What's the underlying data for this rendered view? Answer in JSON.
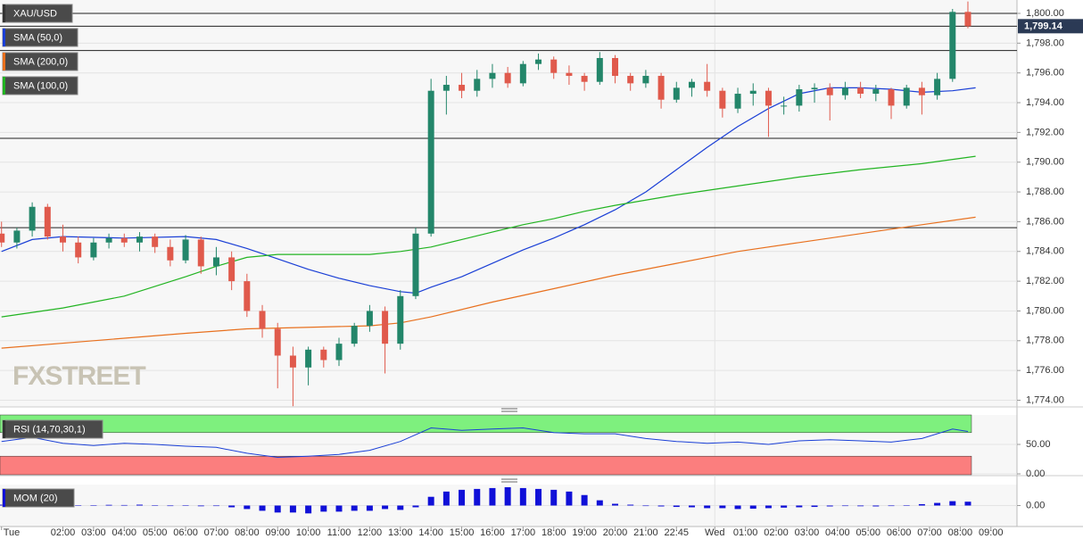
{
  "chart_data": [
    {
      "type": "candlestick",
      "pane": "main",
      "symbol": "XAU/USD",
      "indicators": [
        {
          "name": "SMA (50,0)",
          "color": "#1a3fd6",
          "x": [
            0,
            1,
            2,
            4,
            6,
            7,
            8,
            9,
            10,
            11,
            12,
            13,
            13.5,
            14,
            15,
            16,
            17,
            18,
            19,
            20,
            21,
            22,
            23,
            24,
            25,
            26,
            27,
            28,
            29,
            30,
            31,
            31.75
          ],
          "values": [
            1784,
            1784.8,
            1785,
            1784.9,
            1785,
            1784.8,
            1784.2,
            1783.5,
            1782.8,
            1782.2,
            1781.7,
            1781.3,
            1781.2,
            1781.6,
            1782.3,
            1783.2,
            1784.1,
            1784.9,
            1785.8,
            1786.8,
            1788,
            1789.5,
            1791,
            1792.4,
            1793.6,
            1794.6,
            1795,
            1795,
            1794.9,
            1794.7,
            1794.8,
            1795
          ]
        },
        {
          "name": "SMA (200,0)",
          "color": "#e8701e",
          "x": [
            0,
            3,
            6,
            8,
            12,
            13,
            14,
            16,
            18,
            20,
            22,
            24,
            26,
            28,
            30,
            31.75
          ],
          "values": [
            1777.5,
            1778,
            1778.5,
            1778.8,
            1779,
            1779.2,
            1779.6,
            1780.6,
            1781.5,
            1782.4,
            1783.2,
            1784,
            1784.6,
            1785.2,
            1785.8,
            1786.3
          ]
        },
        {
          "name": "SMA (100,0)",
          "color": "#22b422",
          "x": [
            0,
            2,
            4,
            6,
            7,
            8,
            9,
            10,
            11,
            12,
            13,
            14,
            15,
            16,
            17,
            18,
            19,
            20,
            22,
            23,
            24,
            26,
            28,
            30,
            31.75
          ],
          "values": [
            1779.6,
            1780.2,
            1781,
            1782.3,
            1783,
            1783.6,
            1783.8,
            1783.8,
            1783.8,
            1783.8,
            1784,
            1784.3,
            1784.8,
            1785.3,
            1785.8,
            1786.2,
            1786.7,
            1787.1,
            1787.8,
            1788.1,
            1788.4,
            1789,
            1789.5,
            1789.9,
            1790.4
          ]
        }
      ],
      "up_color": "#23866a",
      "down_color": "#e05a4c",
      "x": [
        0,
        0.5,
        1,
        1.5,
        2,
        2.5,
        3,
        3.5,
        4,
        4.5,
        5,
        5.5,
        6,
        6.5,
        7,
        7.5,
        8,
        8.5,
        9,
        9.5,
        10,
        10.5,
        11,
        11.5,
        12,
        12.5,
        13,
        13.5,
        14,
        14.5,
        15,
        15.5,
        16,
        16.5,
        17,
        17.5,
        18,
        18.5,
        19,
        19.5,
        20,
        20.5,
        21,
        21.5,
        22,
        22.5,
        23,
        23.5,
        24,
        24.5,
        25,
        25.5,
        26,
        26.5,
        27,
        27.5,
        28,
        28.5,
        29,
        29.5,
        30,
        30.5,
        31,
        31.5
      ],
      "open": [
        1785.2,
        1784.6,
        1785.4,
        1787,
        1785,
        1784.6,
        1783.6,
        1784.6,
        1784.9,
        1784.6,
        1785,
        1784.3,
        1783.4,
        1784.8,
        1783,
        1783.6,
        1782,
        1780,
        1778.8,
        1777,
        1776.2,
        1777.4,
        1776.7,
        1777.8,
        1779,
        1780,
        1777.8,
        1781,
        1785.2,
        1794.8,
        1795.2,
        1794.8,
        1795.6,
        1796,
        1795.3,
        1796.6,
        1796.9,
        1796,
        1795.8,
        1795.4,
        1797,
        1795.8,
        1795.3,
        1795.8,
        1794.2,
        1795,
        1795.4,
        1794.8,
        1793.6,
        1794.6,
        1794.8,
        1793.8,
        1793.8,
        1794.9,
        1795,
        1794.5,
        1795,
        1794.6,
        1794.9,
        1793.8,
        1795,
        1794.5,
        1795.6,
        1800.1
      ],
      "high": [
        1786,
        1785.6,
        1787.3,
        1787.2,
        1785.8,
        1785,
        1784.9,
        1785.2,
        1785.2,
        1785.3,
        1785.2,
        1784.8,
        1785.1,
        1785,
        1784.3,
        1784,
        1782.5,
        1780.4,
        1779.2,
        1777.6,
        1777.6,
        1777.6,
        1778.2,
        1779.2,
        1780.4,
        1780.3,
        1781.4,
        1785.6,
        1795.6,
        1795.8,
        1796,
        1796.2,
        1796.6,
        1796.4,
        1796.8,
        1797.3,
        1797.1,
        1796.5,
        1796,
        1797.4,
        1797.2,
        1796,
        1796.2,
        1796,
        1795.4,
        1795.6,
        1796.6,
        1795,
        1795,
        1795.3,
        1795,
        1794.4,
        1795.2,
        1795.3,
        1795.3,
        1795.4,
        1795.4,
        1795.2,
        1795,
        1795.2,
        1795.4,
        1796,
        1800.3,
        1800.8
      ],
      "low": [
        1784.3,
        1784.2,
        1785,
        1784.8,
        1784,
        1783.2,
        1783.4,
        1784.2,
        1784.3,
        1784,
        1783.9,
        1783,
        1783.2,
        1782.5,
        1782.4,
        1781.4,
        1779.6,
        1778.2,
        1774.8,
        1773.6,
        1775,
        1776.2,
        1776.3,
        1777.6,
        1778.6,
        1775.8,
        1777.4,
        1780.8,
        1785,
        1793.2,
        1794.3,
        1794.4,
        1795,
        1795,
        1795.1,
        1796.2,
        1795.6,
        1795.2,
        1794.8,
        1795.2,
        1795.3,
        1794.8,
        1795,
        1793.6,
        1794,
        1794.4,
        1794.4,
        1793,
        1793.3,
        1793.8,
        1791.7,
        1793.2,
        1793.4,
        1794,
        1792.8,
        1794.2,
        1794.3,
        1794.1,
        1792.9,
        1793.6,
        1793.2,
        1794.2,
        1795.4,
        1799
      ],
      "close": [
        1784.6,
        1785.4,
        1787,
        1785,
        1784.6,
        1783.6,
        1784.6,
        1784.9,
        1784.6,
        1785,
        1784.3,
        1783.4,
        1784.8,
        1783,
        1783.6,
        1782,
        1780,
        1778.8,
        1777,
        1776.2,
        1777.4,
        1776.7,
        1777.8,
        1779,
        1780,
        1777.8,
        1781,
        1785.2,
        1794.8,
        1795.2,
        1794.8,
        1795.6,
        1796,
        1795.3,
        1796.6,
        1796.9,
        1796,
        1795.8,
        1795.4,
        1797,
        1795.8,
        1795.3,
        1795.8,
        1794.2,
        1795,
        1795.4,
        1794.8,
        1793.6,
        1794.6,
        1794.8,
        1793.8,
        1793.8,
        1794.9,
        1795,
        1794.5,
        1795,
        1794.6,
        1794.9,
        1793.8,
        1795,
        1794.5,
        1795.6,
        1800.1,
        1799.14
      ],
      "levels": [
        1800,
        1799.14,
        1797.5,
        1791.6,
        1785.6
      ],
      "last_price": {
        "value": 1799.14,
        "label": "1,799.14"
      },
      "watermark": "FXSTREET",
      "xlim": [
        -0.05,
        33.1
      ],
      "ylim": [
        1773.55,
        1800.9
      ],
      "yticks": [
        {
          "value": 1774,
          "label": "1,774.00"
        },
        {
          "value": 1776,
          "label": "1,776.00"
        },
        {
          "value": 1778,
          "label": "1,778.00"
        },
        {
          "value": 1780,
          "label": "1,780.00"
        },
        {
          "value": 1782,
          "label": "1,782.00"
        },
        {
          "value": 1784,
          "label": "1,784.00"
        },
        {
          "value": 1786,
          "label": "1,786.00"
        },
        {
          "value": 1788,
          "label": "1,788.00"
        },
        {
          "value": 1790,
          "label": "1,790.00"
        },
        {
          "value": 1792,
          "label": "1,792.00"
        },
        {
          "value": 1794,
          "label": "1,794.00"
        },
        {
          "value": 1796,
          "label": "1,796.00"
        },
        {
          "value": 1798,
          "label": "1,798.00"
        },
        {
          "value": 1800,
          "label": "1,800.00"
        }
      ],
      "xticks": [
        {
          "value": 0,
          "label": "Tue"
        },
        {
          "value": 2,
          "label": "02:00"
        },
        {
          "value": 3,
          "label": "03:00"
        },
        {
          "value": 4,
          "label": "04:00"
        },
        {
          "value": 5,
          "label": "05:00"
        },
        {
          "value": 6,
          "label": "06:00"
        },
        {
          "value": 7,
          "label": "07:00"
        },
        {
          "value": 8,
          "label": "08:00"
        },
        {
          "value": 9,
          "label": "09:00"
        },
        {
          "value": 10,
          "label": "10:00"
        },
        {
          "value": 11,
          "label": "11:00"
        },
        {
          "value": 12,
          "label": "12:00"
        },
        {
          "value": 13,
          "label": "13:00"
        },
        {
          "value": 14,
          "label": "14:00"
        },
        {
          "value": 15,
          "label": "15:00"
        },
        {
          "value": 16,
          "label": "16:00"
        },
        {
          "value": 17,
          "label": "17:00"
        },
        {
          "value": 18,
          "label": "18:00"
        },
        {
          "value": 19,
          "label": "19:00"
        },
        {
          "value": 20,
          "label": "20:00"
        },
        {
          "value": 21,
          "label": "21:00"
        },
        {
          "value": 22,
          "label": "22:45"
        },
        {
          "value": 23.25,
          "label": "Wed"
        },
        {
          "value": 24.25,
          "label": "01:00"
        },
        {
          "value": 25.25,
          "label": "02:00"
        },
        {
          "value": 26.25,
          "label": "03:00"
        },
        {
          "value": 27.25,
          "label": "04:00"
        },
        {
          "value": 28.25,
          "label": "05:00"
        },
        {
          "value": 29.25,
          "label": "06:00"
        },
        {
          "value": 30.25,
          "label": "07:00"
        },
        {
          "value": 31.25,
          "label": "08:00"
        },
        {
          "value": 32.25,
          "label": "09:00"
        }
      ],
      "day_separator": 23.25
    },
    {
      "type": "line",
      "pane": "rsi",
      "name": "RSI (14,70,30,1)",
      "color": "#1a3fd6",
      "x": [
        0,
        1,
        2,
        3,
        4,
        5,
        6,
        7,
        8,
        9,
        10,
        11,
        12,
        13,
        14,
        15,
        16,
        17,
        18,
        19,
        20,
        21,
        22,
        23,
        24,
        25,
        26,
        27,
        28,
        29,
        30,
        31,
        31.5
      ],
      "values": [
        55,
        62,
        52,
        48,
        52,
        50,
        47,
        45,
        35,
        28,
        30,
        33,
        40,
        55,
        78,
        74,
        76,
        78,
        70,
        68,
        68,
        60,
        55,
        52,
        54,
        50,
        56,
        58,
        56,
        54,
        60,
        76,
        72
      ],
      "overbought": 70,
      "oversold": 30,
      "ylim": [
        0,
        100
      ],
      "yticks": [
        {
          "value": 50,
          "label": "50.00"
        },
        {
          "value": 0,
          "label": "0.00"
        }
      ]
    },
    {
      "type": "histogram",
      "pane": "mom",
      "name": "MOM (20)",
      "color": "#1010d8",
      "x": [
        0,
        0.5,
        1,
        1.5,
        2,
        2.5,
        3,
        3.5,
        4,
        4.5,
        5,
        5.5,
        6,
        6.5,
        7,
        7.5,
        8,
        8.5,
        9,
        9.5,
        10,
        10.5,
        11,
        11.5,
        12,
        12.5,
        13,
        13.5,
        14,
        14.5,
        15,
        15.5,
        16,
        16.5,
        17,
        17.5,
        18,
        18.5,
        19,
        19.5,
        20,
        20.5,
        21,
        21.5,
        22,
        22.5,
        23,
        23.5,
        24,
        24.5,
        25,
        25.5,
        26,
        26.5,
        27,
        27.5,
        28,
        28.5,
        29,
        29.5,
        30,
        30.5,
        31,
        31.5
      ],
      "values": [
        0.5,
        0.8,
        1,
        0.6,
        0.3,
        -0.2,
        0.2,
        0.4,
        0.3,
        0.5,
        0.2,
        -0.3,
        0.1,
        -0.4,
        -0.3,
        -1,
        -2,
        -3,
        -4,
        -4,
        -4.5,
        -3.5,
        -3.5,
        -3,
        -3,
        -2,
        -2.5,
        -1,
        5,
        8,
        9,
        9.5,
        10,
        10.5,
        10,
        9.5,
        9,
        8,
        6,
        3,
        1,
        0.5,
        -0.3,
        -0.5,
        -0.8,
        -1,
        -1.5,
        -1.5,
        -2,
        -1.8,
        -1.5,
        -1.2,
        -1,
        -0.8,
        -0.5,
        -0.3,
        -0.4,
        -0.5,
        -0.3,
        0.2,
        0.8,
        1.5,
        2.5,
        2.2
      ],
      "ylim": [
        -12,
        12
      ],
      "yticks": [
        {
          "value": 0,
          "label": "0.00"
        }
      ]
    }
  ]
}
